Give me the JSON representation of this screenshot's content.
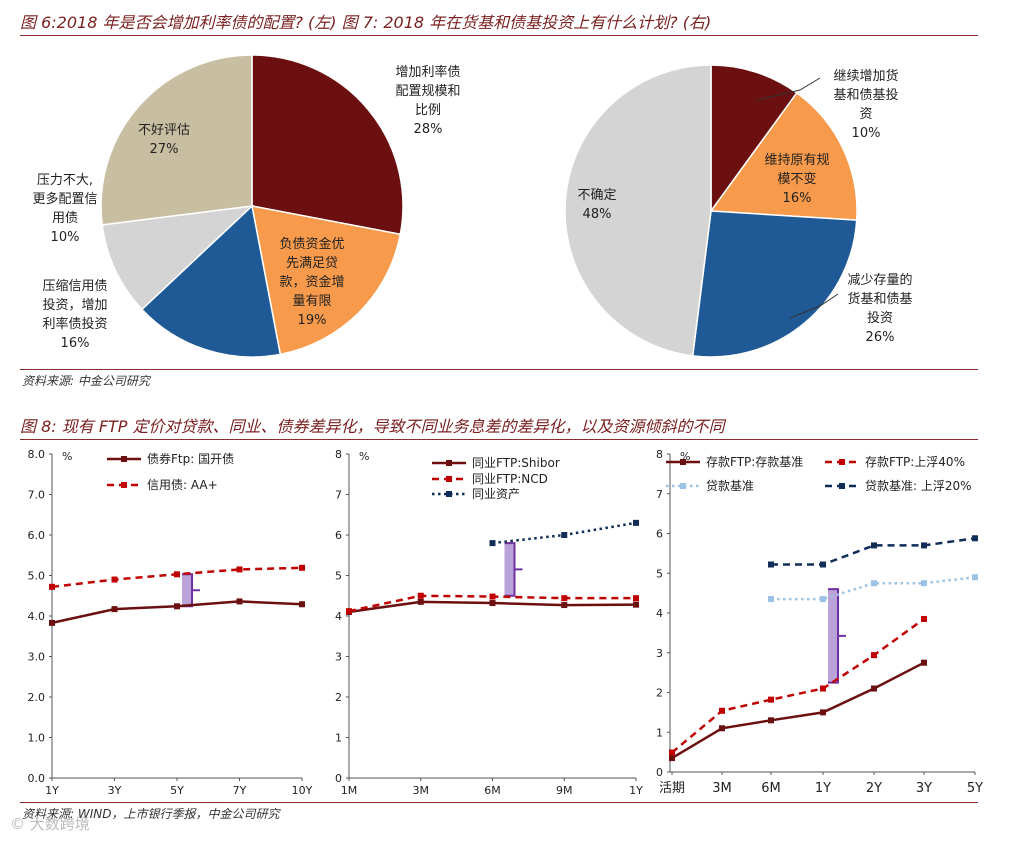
{
  "titles": {
    "top": "图 6:2018 年是否会增加利率债的配置? (左) 图 7: 2018 年在货基和债基投资上有什么计划? (右)",
    "mid": "图 8: 现有 FTP 定价对贷款、同业、债券差异化，导致不同业务息差的差异化，以及资源倾斜的不同"
  },
  "sources": {
    "top": "资料来源: 中金公司研究",
    "bottom": "资料来源: WIND，上市银行季报，中金公司研究"
  },
  "watermark": "© 大数跨境",
  "colors": {
    "darkred": "#6b0f10",
    "orange": "#f79a4b",
    "blue": "#1f5a96",
    "grey": "#d4d4d4",
    "beige": "#c8bfa2",
    "red": "#c00000",
    "navy": "#0f2d57",
    "lightblue": "#9cc3e6",
    "purple": "#7030a0",
    "lavender": "#b9a3d8"
  },
  "chart_data": [
    {
      "type": "pie",
      "slices": [
        {
          "lines": [
            "增加利率债",
            "配置规模和",
            "比例"
          ],
          "pct": "28%",
          "value": 28,
          "color": "#6b0f10"
        },
        {
          "lines": [
            "负债资金优",
            "先满足贷",
            "款，资金增",
            "量有限"
          ],
          "pct": "19%",
          "value": 19,
          "color": "#f79a4b"
        },
        {
          "lines": [
            "压缩信用债",
            "投资，增加",
            "利率债投资"
          ],
          "pct": "16%",
          "value": 16,
          "color": "#1f5a96"
        },
        {
          "lines": [
            "压力不大,",
            "更多配置信",
            "用债"
          ],
          "pct": "10%",
          "value": 10,
          "color": "#d4d4d4"
        },
        {
          "lines": [
            "不好评估"
          ],
          "pct": "27%",
          "value": 27,
          "color": "#c8bfa2"
        }
      ]
    },
    {
      "type": "pie",
      "slices": [
        {
          "lines": [
            "继续增加货",
            "基和债基投",
            "资"
          ],
          "pct": "10%",
          "value": 10,
          "color": "#6b0f10"
        },
        {
          "lines": [
            "维持原有规",
            "模不变"
          ],
          "pct": "16%",
          "value": 16,
          "color": "#f79a4b"
        },
        {
          "lines": [
            "减少存量的",
            "货基和债基",
            "投资"
          ],
          "pct": "26%",
          "value": 26,
          "color": "#1f5a96"
        },
        {
          "lines": [
            "不确定"
          ],
          "pct": "48%",
          "value": 48,
          "color": "#d4d4d4"
        }
      ]
    },
    {
      "type": "line",
      "categories": [
        "1Y",
        "3Y",
        "5Y",
        "7Y",
        "10Y"
      ],
      "yunit": "%",
      "ylim": [
        0,
        8
      ],
      "yticks": [
        "0.0",
        "1.0",
        "2.0",
        "3.0",
        "4.0",
        "5.0",
        "6.0",
        "7.0",
        "8.0"
      ],
      "series": [
        {
          "name": "债券Ftp: 国开债",
          "values": [
            3.83,
            4.17,
            4.24,
            4.36,
            4.29
          ],
          "style": "solid",
          "color": "#6b0f10"
        },
        {
          "name": "信用债: AA+",
          "values": [
            4.72,
            4.9,
            5.03,
            5.15,
            5.19
          ],
          "style": "dash",
          "color": "#c00000"
        }
      ],
      "bracket": {
        "x": "5Y",
        "y0": 4.24,
        "y1": 5.03
      }
    },
    {
      "type": "line",
      "categories": [
        "1M",
        "3M",
        "6M",
        "9M",
        "1Y"
      ],
      "yunit": "%",
      "ylim": [
        0,
        8
      ],
      "yticks": [
        "0",
        "1",
        "2",
        "3",
        "4",
        "5",
        "6",
        "7",
        "8"
      ],
      "series": [
        {
          "name": "同业FTP:Shibor",
          "values": [
            4.1,
            4.35,
            4.32,
            4.27,
            4.28
          ],
          "style": "solid",
          "color": "#6b0f10"
        },
        {
          "name": "同业FTP:NCD",
          "values": [
            4.12,
            4.5,
            4.48,
            4.44,
            4.44
          ],
          "style": "dash",
          "color": "#c00000"
        },
        {
          "name": "同业资产",
          "values": [
            null,
            null,
            5.8,
            6.0,
            6.3
          ],
          "style": "dot",
          "color": "#0f2d57"
        }
      ],
      "bracket": {
        "x": "6M",
        "y0": 4.5,
        "y1": 5.8
      }
    },
    {
      "type": "line",
      "categories": [
        "活期",
        "3M",
        "6M",
        "1Y",
        "2Y",
        "3Y",
        "5Y"
      ],
      "yunit": "%",
      "ylim": [
        0,
        8
      ],
      "yticks": [
        "0",
        "1",
        "2",
        "3",
        "4",
        "5",
        "6",
        "7",
        "8"
      ],
      "series": [
        {
          "name": "存款FTP:存款基准",
          "values": [
            0.35,
            1.1,
            1.3,
            1.5,
            2.1,
            2.75,
            null
          ],
          "style": "solid",
          "color": "#6b0f10"
        },
        {
          "name": "存款FTP:上浮40%",
          "values": [
            0.49,
            1.54,
            1.82,
            2.1,
            2.94,
            3.85,
            null
          ],
          "style": "dash",
          "color": "#c00000"
        },
        {
          "name": "贷款基准",
          "values": [
            null,
            null,
            4.35,
            4.35,
            4.75,
            4.75,
            4.9
          ],
          "style": "dot",
          "color": "#9cc3e6"
        },
        {
          "name": "贷款基准: 上浮20%",
          "values": [
            null,
            null,
            5.22,
            5.22,
            5.7,
            5.7,
            5.88
          ],
          "style": "dash",
          "color": "#0f2d57"
        }
      ],
      "bracket": {
        "x": "1Y",
        "y0": 2.25,
        "y1": 4.6
      }
    }
  ]
}
